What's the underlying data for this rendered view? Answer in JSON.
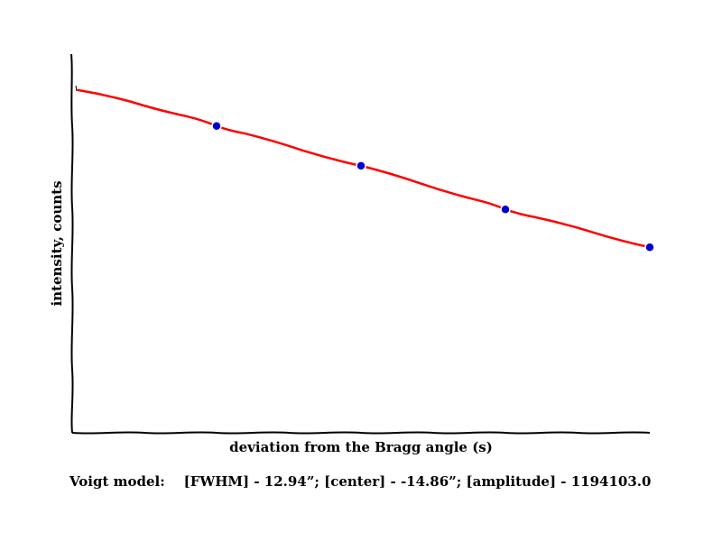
{
  "chart_data": {
    "type": "line",
    "style": "xkcd",
    "title": "",
    "xlabel": "deviation from the Bragg angle (s)",
    "ylabel": "intensity, counts",
    "caption": "Voigt model:    [FWHM] - 12.94”; [center] - -14.86”; [amplitude] - 1194103.0",
    "grid": false,
    "x_ticks_shown": false,
    "y_ticks_shown": false,
    "xlim": [
      0,
      100
    ],
    "ylim": [
      0,
      100
    ],
    "series": [
      {
        "kind": "fit-line",
        "color": "#ff0000",
        "x": [
          1,
          10,
          20,
          25,
          30,
          40,
          50,
          60,
          70,
          75,
          80,
          90,
          100
        ],
        "y": [
          90.5,
          87.5,
          83.5,
          81,
          79,
          74.5,
          70.5,
          66,
          61.5,
          59,
          57,
          53,
          49
        ]
      },
      {
        "kind": "data-points",
        "color": "#0000cd",
        "x": [
          25,
          50,
          75,
          100
        ],
        "y": [
          81,
          70.5,
          59,
          49
        ]
      }
    ]
  }
}
